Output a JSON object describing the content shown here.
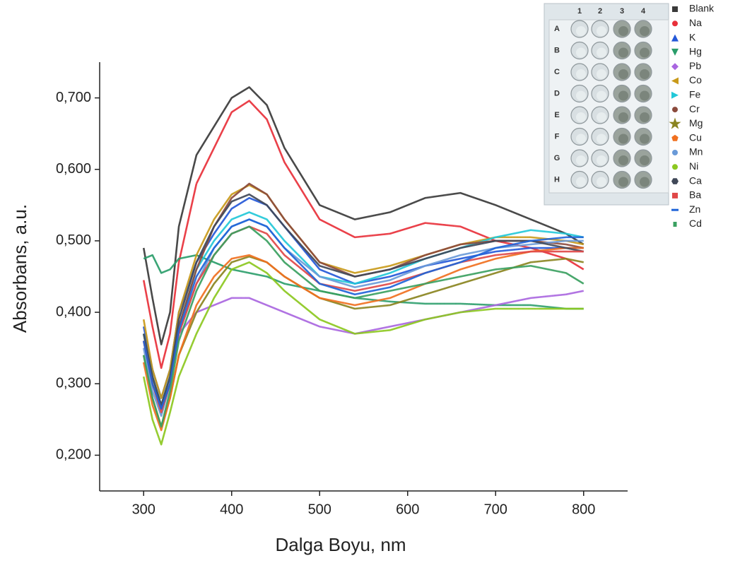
{
  "chart_data": {
    "type": "line",
    "x_label": "Dalga Boyu, nm",
    "y_label": "Absorbans, a.u.",
    "xlim": [
      250,
      850
    ],
    "ylim": [
      0.15,
      0.75
    ],
    "xticks": [
      300,
      400,
      500,
      600,
      700,
      800
    ],
    "yticks": [
      {
        "value": 0.2,
        "label": "0,200"
      },
      {
        "value": 0.3,
        "label": "0,300"
      },
      {
        "value": 0.4,
        "label": "0,400"
      },
      {
        "value": 0.5,
        "label": "0,500"
      },
      {
        "value": 0.6,
        "label": "0,600"
      },
      {
        "value": 0.7,
        "label": "0,700"
      }
    ],
    "x": [
      300,
      310,
      320,
      330,
      340,
      360,
      380,
      400,
      420,
      440,
      460,
      500,
      540,
      580,
      620,
      660,
      700,
      740,
      780,
      800
    ],
    "series": [
      {
        "name": "Blank",
        "color": "#3a3a3a",
        "marker": "square",
        "values": [
          0.49,
          0.42,
          0.355,
          0.4,
          0.52,
          0.62,
          0.66,
          0.7,
          0.715,
          0.69,
          0.63,
          0.55,
          0.53,
          0.54,
          0.56,
          0.567,
          0.55,
          0.53,
          0.51,
          0.495
        ]
      },
      {
        "name": "Na",
        "color": "#e8303a",
        "marker": "circle",
        "values": [
          0.445,
          0.38,
          0.322,
          0.37,
          0.47,
          0.58,
          0.63,
          0.68,
          0.696,
          0.67,
          0.61,
          0.53,
          0.505,
          0.51,
          0.525,
          0.52,
          0.5,
          0.49,
          0.475,
          0.46
        ]
      },
      {
        "name": "K",
        "color": "#2458d8",
        "marker": "triangle-up",
        "values": [
          0.38,
          0.32,
          0.28,
          0.32,
          0.4,
          0.47,
          0.51,
          0.545,
          0.56,
          0.55,
          0.52,
          0.46,
          0.44,
          0.45,
          0.465,
          0.475,
          0.485,
          0.49,
          0.49,
          0.49
        ]
      },
      {
        "name": "Hg",
        "color": "#2a9d6a",
        "marker": "triangle-down",
        "values": [
          0.475,
          0.48,
          0.455,
          0.46,
          0.475,
          0.48,
          0.47,
          0.46,
          0.455,
          0.45,
          0.44,
          0.43,
          0.42,
          0.415,
          0.412,
          0.412,
          0.41,
          0.41,
          0.405,
          0.405
        ]
      },
      {
        "name": "Pb",
        "color": "#a966e0",
        "marker": "diamond",
        "values": [
          0.37,
          0.31,
          0.27,
          0.31,
          0.37,
          0.4,
          0.41,
          0.42,
          0.42,
          0.41,
          0.4,
          0.38,
          0.37,
          0.38,
          0.39,
          0.4,
          0.41,
          0.42,
          0.425,
          0.43
        ]
      },
      {
        "name": "Co",
        "color": "#c99a1a",
        "marker": "triangle-left",
        "values": [
          0.39,
          0.32,
          0.28,
          0.32,
          0.4,
          0.48,
          0.53,
          0.565,
          0.578,
          0.565,
          0.53,
          0.47,
          0.455,
          0.465,
          0.48,
          0.495,
          0.505,
          0.505,
          0.5,
          0.495
        ]
      },
      {
        "name": "Fe",
        "color": "#22c8d8",
        "marker": "triangle-right",
        "values": [
          0.37,
          0.31,
          0.27,
          0.31,
          0.38,
          0.46,
          0.5,
          0.53,
          0.54,
          0.53,
          0.5,
          0.45,
          0.44,
          0.455,
          0.475,
          0.49,
          0.505,
          0.515,
          0.51,
          0.505
        ]
      },
      {
        "name": "Cr",
        "color": "#8b4a3c",
        "marker": "circle",
        "values": [
          0.36,
          0.3,
          0.265,
          0.3,
          0.38,
          0.46,
          0.52,
          0.56,
          0.58,
          0.565,
          0.53,
          0.47,
          0.45,
          0.46,
          0.48,
          0.495,
          0.5,
          0.5,
          0.495,
          0.49
        ]
      },
      {
        "name": "Mg",
        "color": "#8a8420",
        "marker": "star",
        "values": [
          0.34,
          0.28,
          0.24,
          0.28,
          0.34,
          0.4,
          0.44,
          0.47,
          0.478,
          0.47,
          0.45,
          0.42,
          0.405,
          0.41,
          0.425,
          0.44,
          0.455,
          0.47,
          0.475,
          0.47
        ]
      },
      {
        "name": "Cu",
        "color": "#f07020",
        "marker": "pentagon",
        "values": [
          0.33,
          0.27,
          0.235,
          0.28,
          0.34,
          0.41,
          0.45,
          0.475,
          0.48,
          0.47,
          0.45,
          0.42,
          0.41,
          0.42,
          0.44,
          0.46,
          0.475,
          0.485,
          0.49,
          0.49
        ]
      },
      {
        "name": "Mn",
        "color": "#6a9ad8",
        "marker": "circle",
        "values": [
          0.35,
          0.29,
          0.255,
          0.3,
          0.37,
          0.44,
          0.49,
          0.52,
          0.53,
          0.52,
          0.49,
          0.45,
          0.435,
          0.445,
          0.465,
          0.48,
          0.49,
          0.495,
          0.5,
          0.5
        ]
      },
      {
        "name": "Ni",
        "color": "#8cc820",
        "marker": "circle",
        "values": [
          0.31,
          0.25,
          0.215,
          0.26,
          0.31,
          0.37,
          0.42,
          0.46,
          0.47,
          0.455,
          0.43,
          0.39,
          0.37,
          0.375,
          0.39,
          0.4,
          0.405,
          0.405,
          0.405,
          0.405
        ]
      },
      {
        "name": "Ca",
        "color": "#404858",
        "marker": "hexagon",
        "values": [
          0.37,
          0.31,
          0.27,
          0.31,
          0.39,
          0.47,
          0.52,
          0.555,
          0.565,
          0.55,
          0.52,
          0.465,
          0.45,
          0.46,
          0.475,
          0.49,
          0.5,
          0.5,
          0.49,
          0.485
        ]
      },
      {
        "name": "Ba",
        "color": "#e04848",
        "marker": "square",
        "values": [
          0.36,
          0.3,
          0.26,
          0.3,
          0.37,
          0.44,
          0.48,
          0.51,
          0.52,
          0.51,
          0.48,
          0.44,
          0.43,
          0.44,
          0.455,
          0.47,
          0.48,
          0.485,
          0.485,
          0.485
        ]
      },
      {
        "name": "Zn",
        "color": "#1e64d8",
        "marker": "dash",
        "values": [
          0.36,
          0.3,
          0.265,
          0.3,
          0.375,
          0.45,
          0.49,
          0.52,
          0.53,
          0.52,
          0.49,
          0.44,
          0.425,
          0.435,
          0.455,
          0.47,
          0.49,
          0.5,
          0.505,
          0.505
        ]
      },
      {
        "name": "Cd",
        "color": "#3aa060",
        "marker": "small-square",
        "values": [
          0.34,
          0.28,
          0.24,
          0.29,
          0.36,
          0.43,
          0.48,
          0.51,
          0.52,
          0.5,
          0.47,
          0.43,
          0.42,
          0.43,
          0.44,
          0.45,
          0.46,
          0.465,
          0.455,
          0.44
        ]
      }
    ],
    "inset": {
      "columns": [
        "1",
        "2",
        "3",
        "4"
      ],
      "rows": [
        "A",
        "B",
        "C",
        "D",
        "E",
        "F",
        "G",
        "H"
      ]
    }
  }
}
